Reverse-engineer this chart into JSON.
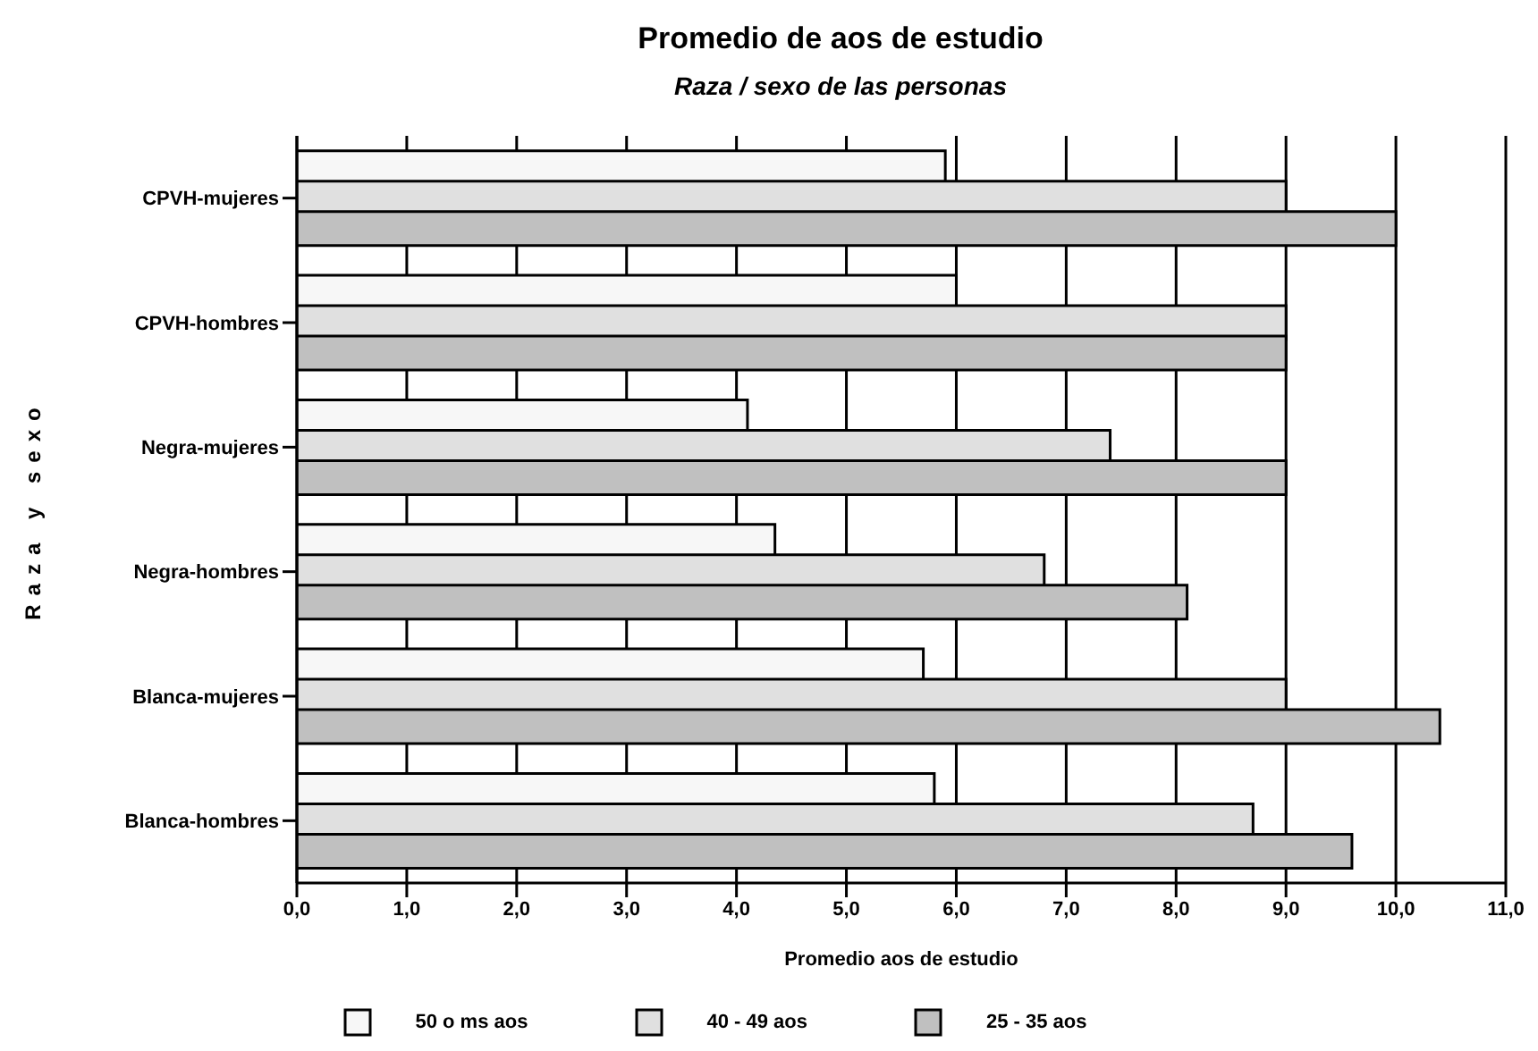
{
  "chart_data": {
    "type": "bar",
    "orientation": "horizontal",
    "title": "Promedio de aos de estudio",
    "subtitle": "Raza / sexo de las personas",
    "xlabel": "Promedio aos de estudio",
    "ylabel": "Raza y sexo",
    "categories": [
      "CPVH-mujeres",
      "CPVH-hombres",
      "Negra-mujeres",
      "Negra-hombres",
      "Blanca-mujeres",
      "Blanca-hombres"
    ],
    "series": [
      {
        "name": "50 o ms aos",
        "color": "#f7f7f7",
        "values": [
          5.9,
          6.0,
          4.1,
          4.35,
          5.7,
          5.8
        ]
      },
      {
        "name": "40 - 49 aos",
        "color": "#e0e0e0",
        "values": [
          9.0,
          9.0,
          7.4,
          6.8,
          9.0,
          8.7
        ]
      },
      {
        "name": "25 - 35 aos",
        "color": "#c0c0c0",
        "values": [
          10.0,
          9.0,
          9.0,
          8.1,
          10.4,
          9.6
        ]
      }
    ],
    "xlim": [
      0,
      11
    ],
    "xticks": [
      {
        "value": 0,
        "label": "0,0"
      },
      {
        "value": 1,
        "label": "1,0"
      },
      {
        "value": 2,
        "label": "2,0"
      },
      {
        "value": 3,
        "label": "3,0"
      },
      {
        "value": 4,
        "label": "4,0"
      },
      {
        "value": 5,
        "label": "5,0"
      },
      {
        "value": 6,
        "label": "6,0"
      },
      {
        "value": 7,
        "label": "7,0"
      },
      {
        "value": 8,
        "label": "8,0"
      },
      {
        "value": 9,
        "label": "9,0"
      },
      {
        "value": 10,
        "label": "10,0"
      },
      {
        "value": 11,
        "label": "11,0"
      }
    ],
    "grid": "x",
    "legend": "bottom"
  }
}
